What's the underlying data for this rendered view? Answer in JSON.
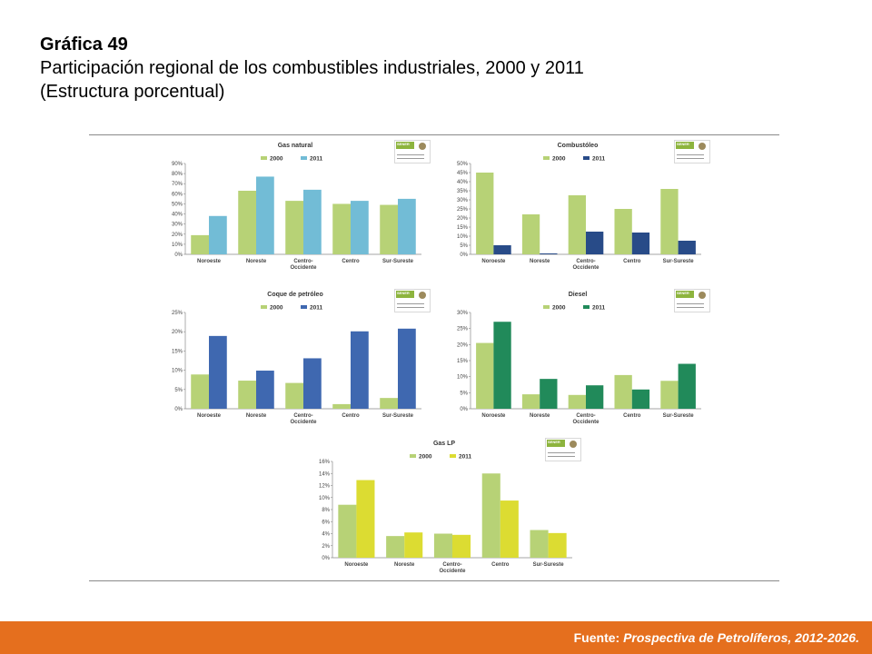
{
  "header": {
    "label": "Gráfica 49",
    "title": "Participación regional de los combustibles industriales, 2000 y 2011",
    "subtitle": "(Estructura porcentual)"
  },
  "footer": {
    "source_label": "Fuente:",
    "source_text": "Prospectiva de Petrolíferos, 2012-2026."
  },
  "logo": {
    "text": "SENER",
    "icon": "sener-logo"
  },
  "colors": {
    "y2000": "#b7d276",
    "gas_natural_2011": "#72bcd6",
    "combustoleo_2011": "#284b88",
    "coque_2011": "#3f68b0",
    "diesel_2011": "#218a5a",
    "gaslp_2011": "#dcdc32",
    "footer": "#e56f1e"
  },
  "chart_data": [
    {
      "type": "bar",
      "title": "Gas natural",
      "categories": [
        "Noroeste",
        "Noreste",
        "Centro-Occidente",
        "Centro",
        "Sur-Sureste"
      ],
      "series": [
        {
          "name": "2000",
          "values": [
            19,
            63,
            53,
            50,
            49
          ]
        },
        {
          "name": "2011",
          "values": [
            38,
            77,
            64,
            53,
            55
          ]
        }
      ],
      "ylim": [
        0,
        90
      ],
      "yticks": [
        0,
        10,
        20,
        30,
        40,
        50,
        60,
        70,
        80,
        90
      ],
      "unit": "%",
      "legend": "top"
    },
    {
      "type": "bar",
      "title": "Combustóleo",
      "categories": [
        "Noroeste",
        "Noreste",
        "Centro-Occidente",
        "Centro",
        "Sur-Sureste"
      ],
      "series": [
        {
          "name": "2000",
          "values": [
            45,
            22,
            32.5,
            25,
            36
          ]
        },
        {
          "name": "2011",
          "values": [
            5,
            0.5,
            12.5,
            12,
            7.5
          ]
        }
      ],
      "ylim": [
        0,
        50
      ],
      "yticks": [
        0,
        5,
        10,
        15,
        20,
        25,
        30,
        35,
        40,
        45,
        50
      ],
      "unit": "%",
      "legend": "top"
    },
    {
      "type": "bar",
      "title": "Coque de petróleo",
      "categories": [
        "Noroeste",
        "Noreste",
        "Centro-Occidente",
        "Centro",
        "Sur-Sureste"
      ],
      "series": [
        {
          "name": "2000",
          "values": [
            8.9,
            7.3,
            6.7,
            1.2,
            2.8
          ]
        },
        {
          "name": "2011",
          "values": [
            18.9,
            9.9,
            13.1,
            20.1,
            20.8
          ]
        }
      ],
      "ylim": [
        0,
        25
      ],
      "yticks": [
        0,
        5,
        10,
        15,
        20,
        25
      ],
      "unit": "%",
      "legend": "top"
    },
    {
      "type": "bar",
      "title": "Diesel",
      "categories": [
        "Noroeste",
        "Noreste",
        "Centro-Occidente",
        "Centro",
        "Sur-Sureste"
      ],
      "series": [
        {
          "name": "2000",
          "values": [
            20.5,
            4.5,
            4.3,
            10.5,
            8.7
          ]
        },
        {
          "name": "2011",
          "values": [
            27.1,
            9.3,
            7.3,
            6,
            14
          ]
        }
      ],
      "ylim": [
        0,
        30
      ],
      "yticks": [
        0,
        5,
        10,
        15,
        20,
        25,
        30
      ],
      "unit": "%",
      "legend": "top"
    },
    {
      "type": "bar",
      "title": "Gas LP",
      "categories": [
        "Noroeste",
        "Noreste",
        "Centro-Occidente",
        "Centro",
        "Sur-Sureste"
      ],
      "series": [
        {
          "name": "2000",
          "values": [
            8.8,
            3.6,
            4,
            14,
            4.6
          ]
        },
        {
          "name": "2011",
          "values": [
            12.9,
            4.2,
            3.8,
            9.5,
            4.1
          ]
        }
      ],
      "ylim": [
        0,
        16
      ],
      "yticks": [
        0,
        2,
        4,
        6,
        8,
        10,
        12,
        14,
        16
      ],
      "unit": "%",
      "legend": "top"
    }
  ]
}
